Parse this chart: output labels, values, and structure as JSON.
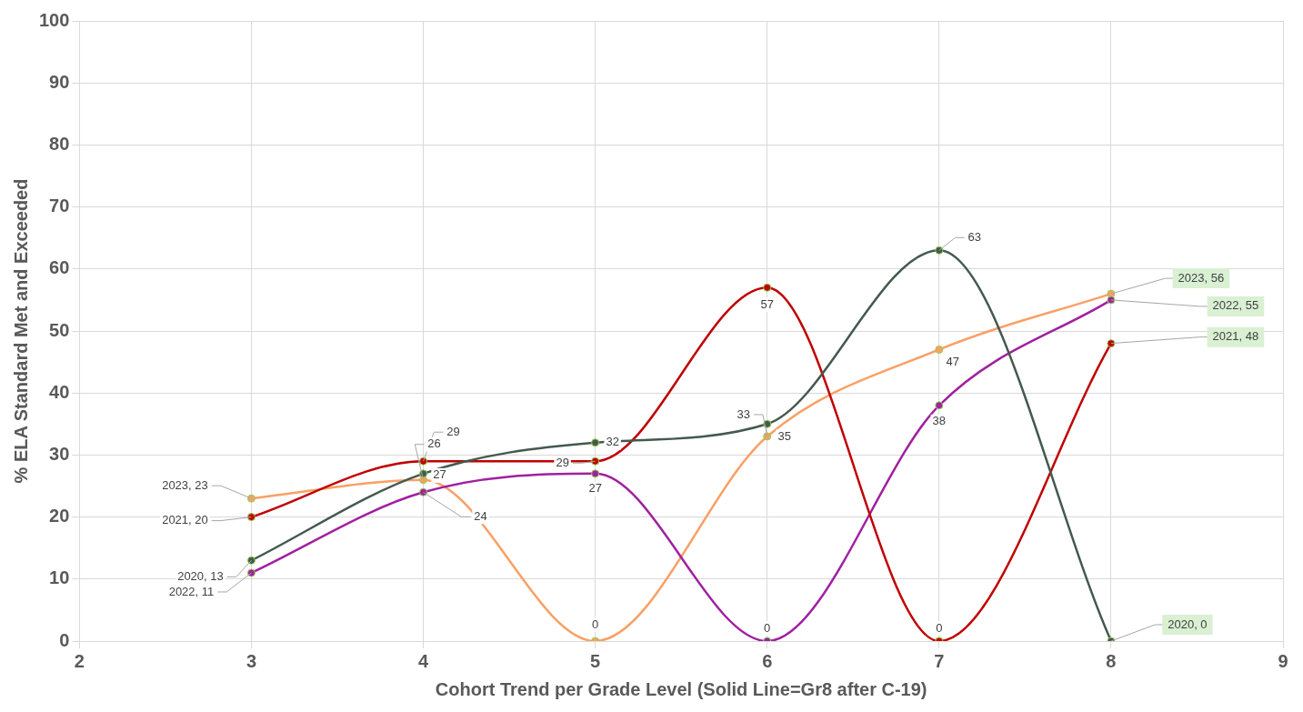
{
  "chart_data": {
    "type": "line",
    "xlabel": "Cohort Trend per Grade Level (Solid Line=Gr8 after C-19)",
    "ylabel": "% ELA Standard Met and Exceeded",
    "x": [
      3,
      4,
      5,
      6,
      7,
      8
    ],
    "series": [
      {
        "color": "#44594e",
        "values": [
          13,
          27,
          32,
          35,
          63,
          0
        ],
        "value_labels": [
          "2020, 13",
          "27",
          "32",
          "35",
          "63",
          "2020, 0"
        ]
      },
      {
        "color": "#c00000",
        "values": [
          20,
          29,
          29,
          57,
          0,
          48
        ],
        "value_labels": [
          "2021, 20",
          "29",
          "29",
          "57",
          "0",
          "2021, 48"
        ]
      },
      {
        "color": "#a020a0",
        "values": [
          11,
          24,
          27,
          0,
          38,
          55
        ],
        "value_labels": [
          "2022, 11",
          "24",
          "27",
          "0",
          "38",
          "2022, 55"
        ]
      },
      {
        "color": "#f9a066",
        "values": [
          23,
          26,
          0,
          33,
          47,
          56
        ],
        "value_labels": [
          "2023, 23",
          "26",
          "0",
          "33",
          "47",
          "2023, 56"
        ]
      }
    ],
    "xlim": [
      2,
      9
    ],
    "xticks": [
      2,
      3,
      4,
      5,
      6,
      7,
      8,
      9
    ],
    "ylim": [
      0,
      100
    ],
    "yticks": [
      0,
      10,
      20,
      30,
      40,
      50,
      60,
      70,
      80,
      90,
      100
    ],
    "grid": true,
    "legend": false,
    "marker": "circle",
    "line_style": "solid"
  }
}
